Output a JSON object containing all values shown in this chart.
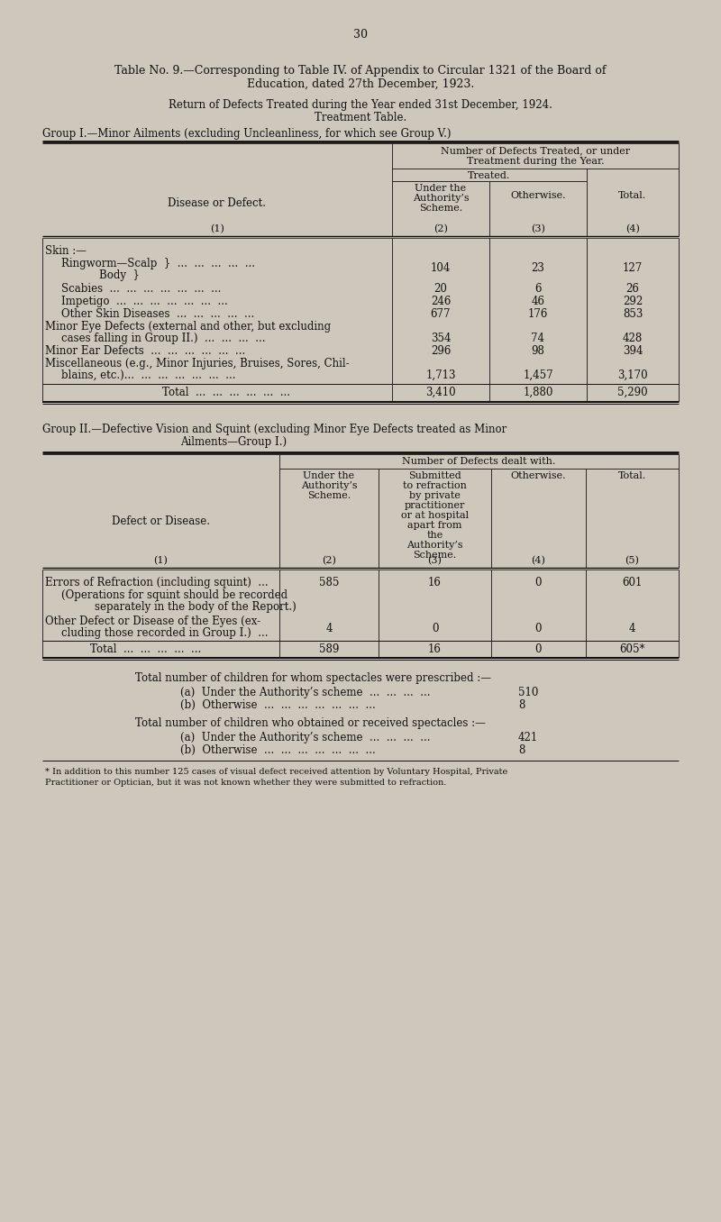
{
  "page_number": "30",
  "bg_color": "#cec8bc",
  "text_color": "#1a1a1a",
  "title_line1": "Table No. 9.—Corresponding to Table IV. of Appendix to Circular 1321 of the Board of",
  "title_line2": "Education, dated 27th December, 1923.",
  "subtitle_line1": "Return of Defects Treated during the Year ended 31st December, 1924.",
  "subtitle_line2": "Treatment Table.",
  "group1_heading_line1": "Group I.—Minor Ailments (excluding Uncleanliness, for which see Group V.)",
  "group2_heading_line1": "Group II.—Defective Vision and Squint (excluding Minor Eye Defects treated as Minor",
  "group2_heading_line2": "Ailments—Group I.)",
  "footnote_line1": "* In addition to this number 125 cases of visual defect received attention by Voluntary Hospital, Private",
  "footnote_line2": "Practitioner or Optician, but it was not known whether they were submitted to refraction."
}
